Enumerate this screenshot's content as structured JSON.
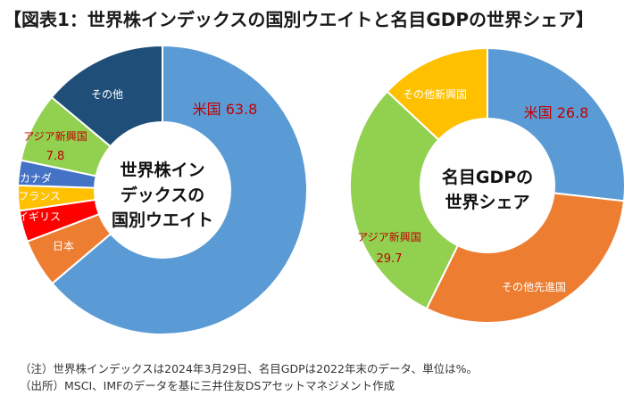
{
  "title": "【図表1：世界株インデックスの国別ウエイトと名目GDPの世界シェア】",
  "chart_data": [
    {
      "type": "pie",
      "variant": "donut",
      "center_label": [
        "世界株イン",
        "デックスの",
        "国別ウエイト"
      ],
      "slices": [
        {
          "name": "米国",
          "value": 63.8,
          "value_label": "米国 63.8",
          "color": "#5b9bd5",
          "label_color": "#c00000"
        },
        {
          "name": "日本",
          "value": 5.4,
          "value_label": "",
          "color": "#ed7d31",
          "label_color": "#ffffff"
        },
        {
          "name": "イギリス",
          "value": 3.5,
          "value_label": "",
          "color": "#ff0000",
          "label_color": "#ffffff"
        },
        {
          "name": "フランス",
          "value": 2.8,
          "value_label": "",
          "color": "#ffc000",
          "label_color": "#ffffff"
        },
        {
          "name": "カナダ",
          "value": 2.8,
          "value_label": "",
          "color": "#4472c4",
          "label_color": "#ffffff"
        },
        {
          "name": "アジア新興国",
          "value": 7.8,
          "value_label": "7.8",
          "color": "#92d050",
          "label_color": "#c00000"
        },
        {
          "name": "その他",
          "value": 13.9,
          "value_label": "",
          "color": "#1f4e79",
          "label_color": "#ffffff"
        }
      ]
    },
    {
      "type": "pie",
      "variant": "donut",
      "center_label": [
        "名目GDPの",
        "世界シェア"
      ],
      "slices": [
        {
          "name": "米国",
          "value": 26.8,
          "value_label": "米国 26.8",
          "color": "#5b9bd5",
          "label_color": "#c00000"
        },
        {
          "name": "その他先進国",
          "value": 30.5,
          "value_label": "",
          "color": "#ed7d31",
          "label_color": "#ffffff"
        },
        {
          "name": "アジア新興国",
          "value": 29.7,
          "value_label": "29.7",
          "color": "#92d050",
          "label_color": "#c00000"
        },
        {
          "name": "その他新興国",
          "value": 13.0,
          "value_label": "",
          "color": "#ffc000",
          "label_color": "#ffffff"
        }
      ]
    }
  ],
  "notes": [
    "（注）世界株インデックスは2024年3月29日、名目GDPは2022年末のデータ、単位は%。",
    "（出所）MSCI、IMFのデータを基に三井住友DSアセットマネジメント作成"
  ]
}
